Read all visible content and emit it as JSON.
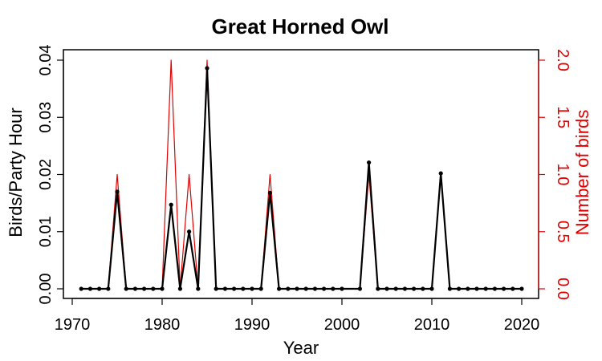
{
  "chart_data": {
    "type": "line",
    "title": "Great Horned Owl",
    "xlabel": "Year",
    "ylabel": "Birds/Party Hour",
    "y2label": "Number of birds",
    "xlim": [
      1970,
      2020
    ],
    "ylim": [
      0,
      0.04
    ],
    "y2lim": [
      0,
      2.0
    ],
    "x_ticks": [
      1970,
      1980,
      1990,
      2000,
      2010,
      2020
    ],
    "y_ticks": [
      0.0,
      0.01,
      0.02,
      0.03,
      0.04
    ],
    "y_tick_labels": [
      "0.00",
      "0.01",
      "0.02",
      "0.03",
      "0.04"
    ],
    "y2_ticks": [
      0.0,
      0.5,
      1.0,
      1.5,
      2.0
    ],
    "y2_tick_labels": [
      "0.0",
      "0.5",
      "1.0",
      "1.5",
      "2.0"
    ],
    "grid": false,
    "colors": {
      "primary": "#000000",
      "secondary": "#e00000"
    },
    "x": [
      1971,
      1972,
      1973,
      1974,
      1975,
      1976,
      1977,
      1978,
      1979,
      1980,
      1981,
      1982,
      1983,
      1984,
      1985,
      1986,
      1987,
      1988,
      1989,
      1990,
      1991,
      1992,
      1993,
      1994,
      1995,
      1996,
      1997,
      1998,
      1999,
      2000,
      2002,
      2003,
      2004,
      2005,
      2006,
      2007,
      2008,
      2009,
      2010,
      2011,
      2012,
      2013,
      2014,
      2015,
      2016,
      2017,
      2018,
      2019,
      2020
    ],
    "series": [
      {
        "axis": "left",
        "values": [
          0,
          0,
          0,
          0,
          0.017,
          0,
          0,
          0,
          0,
          0,
          0.0147,
          0,
          0.01,
          0,
          0.0386,
          0,
          0,
          0,
          0,
          0,
          0,
          0.0168,
          0,
          0,
          0,
          0,
          0,
          0,
          0,
          0,
          0,
          0.0221,
          0,
          0,
          0,
          0,
          0,
          0,
          0,
          0.0202,
          0,
          0,
          0,
          0,
          0,
          0,
          0,
          0,
          0
        ]
      },
      {
        "axis": "right",
        "values": [
          0,
          0,
          0,
          0,
          1,
          0,
          0,
          0,
          0,
          0,
          2,
          0,
          1,
          0,
          2,
          0,
          0,
          0,
          0,
          0,
          0,
          1,
          0,
          0,
          0,
          0,
          0,
          0,
          0,
          0,
          0,
          1,
          0,
          0,
          0,
          0,
          0,
          0,
          0,
          1,
          0,
          0,
          0,
          0,
          0,
          0,
          0,
          0,
          0
        ]
      }
    ]
  }
}
